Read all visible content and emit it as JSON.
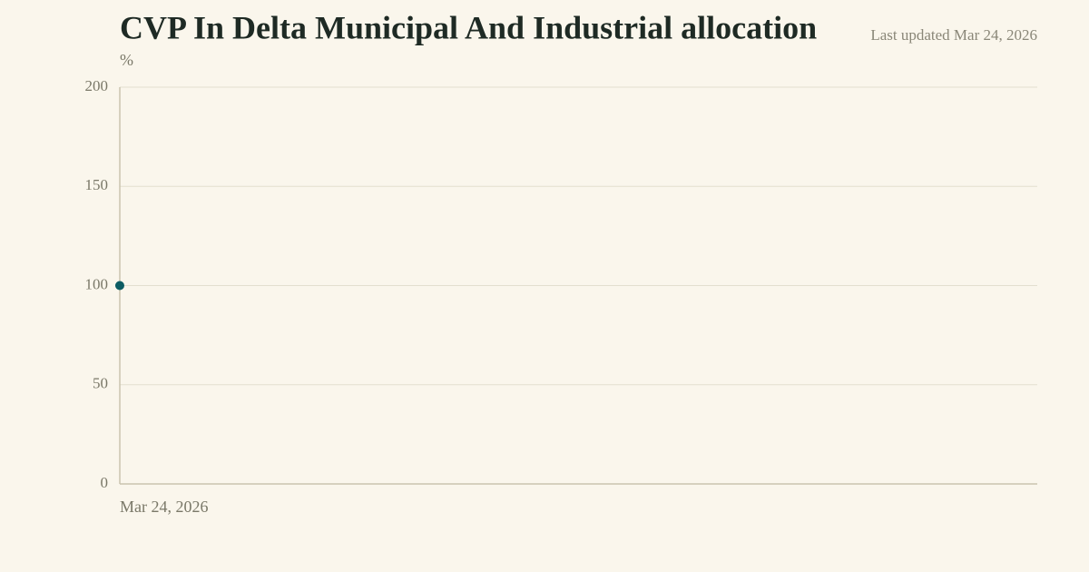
{
  "chart_data": {
    "type": "line",
    "title": "CVP In Delta Municipal And Industrial allocation",
    "updated": "Last updated Mar 24, 2026",
    "y_label": "%",
    "x": [
      "Mar 24, 2026"
    ],
    "values": [
      100
    ],
    "color": "#0d5c63",
    "ylim": [
      0,
      200
    ],
    "yticks": [
      0,
      50,
      100,
      150,
      200
    ],
    "grid": true
  }
}
